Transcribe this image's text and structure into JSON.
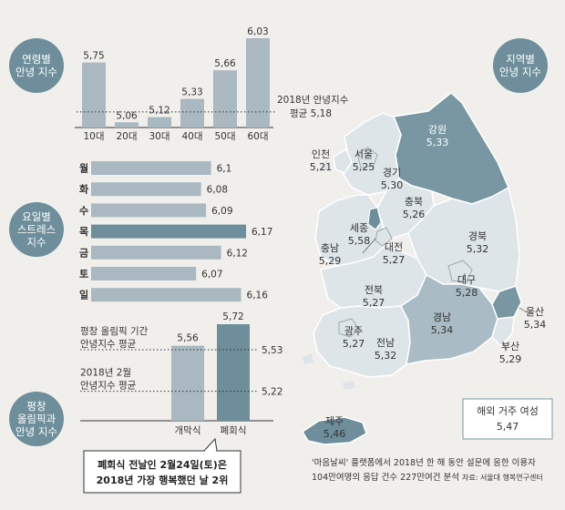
{
  "colors": {
    "background": "#f1efec",
    "bar": "#a9b8c1",
    "bar_highlight": "#6d8e9a",
    "circle": "#6d8e9a",
    "map_light": "#dde5e9",
    "map_mid": "#a9bbc4",
    "map_dark": "#7997a3",
    "map_border": "#ffffff"
  },
  "chart_data": [
    {
      "type": "bar",
      "section_label": [
        "연령별",
        "안녕 지수"
      ],
      "categories": [
        "10대",
        "20대",
        "30대",
        "40대",
        "50대",
        "60대"
      ],
      "values": [
        5.75,
        5.06,
        5.12,
        5.33,
        5.66,
        6.03
      ],
      "value_labels": [
        "5,75",
        "5,06",
        "5,12",
        "5,33",
        "5,66",
        "6,03"
      ],
      "ylim": [
        5.0,
        6.03
      ],
      "reference": {
        "value": 5.18,
        "label_lines": [
          "2018년 안녕지수",
          "평균 5,18"
        ]
      }
    },
    {
      "type": "bar",
      "orientation": "horizontal",
      "section_label": [
        "요일별",
        "스트레스",
        "지수"
      ],
      "categories": [
        "월",
        "화",
        "수",
        "목",
        "금",
        "토",
        "일"
      ],
      "values": [
        6.1,
        6.08,
        6.09,
        6.17,
        6.12,
        6.07,
        6.16
      ],
      "value_labels": [
        "6,1",
        "6,08",
        "6,09",
        "6,17",
        "6,12",
        "6,07",
        "6,16"
      ],
      "highlight": "목",
      "xlim": [
        5.86,
        6.17
      ]
    },
    {
      "type": "bar",
      "section_label": [
        "평창",
        "올림픽과",
        "안녕 지수"
      ],
      "categories": [
        "개막식",
        "폐회식"
      ],
      "values": [
        5.56,
        5.72
      ],
      "value_labels": [
        "5,56",
        "5,72"
      ],
      "ylim": [
        5.0,
        5.72
      ],
      "references": [
        {
          "value": 5.53,
          "value_label": "5,53",
          "label_lines": [
            "평창 올림픽 기간",
            "안녕지수 평균"
          ]
        },
        {
          "value": 5.22,
          "value_label": "5,22",
          "label_lines": [
            "2018년 2월",
            "안녕지수 평균"
          ]
        }
      ],
      "callout_lines": [
        "폐회식 전날인 2월24일(토)은",
        "2018년 가장 행복했던 날 2위"
      ]
    },
    {
      "type": "map",
      "section_label": [
        "지역별",
        "안녕 지수"
      ],
      "regions": [
        {
          "name": "강원",
          "value": "5,33"
        },
        {
          "name": "인천",
          "value": "5,21"
        },
        {
          "name": "서울",
          "value": "5,25"
        },
        {
          "name": "경기",
          "value": "5,30"
        },
        {
          "name": "충북",
          "value": "5,26"
        },
        {
          "name": "세종",
          "value": "5,58"
        },
        {
          "name": "대전",
          "value": "5,27"
        },
        {
          "name": "충남",
          "value": "5,29"
        },
        {
          "name": "경북",
          "value": "5,32"
        },
        {
          "name": "전북",
          "value": "5,27"
        },
        {
          "name": "대구",
          "value": "5,28"
        },
        {
          "name": "광주",
          "value": "5,27"
        },
        {
          "name": "전남",
          "value": "5,32"
        },
        {
          "name": "경남",
          "value": "5,34"
        },
        {
          "name": "울산",
          "value": "5,34"
        },
        {
          "name": "부산",
          "value": "5,29"
        },
        {
          "name": "제주",
          "value": "5,46"
        }
      ],
      "overseas_box": {
        "label": "해외 거주 여성",
        "value": "5,47"
      }
    }
  ],
  "footnote": {
    "lines": [
      "'마음날씨' 플랫폼에서 2018년 한 해 동안 설문에 응한 이용자",
      "104만여명의 응답 건수 227만여건 분석"
    ],
    "source": "자료: 서울대 행복연구센터"
  }
}
